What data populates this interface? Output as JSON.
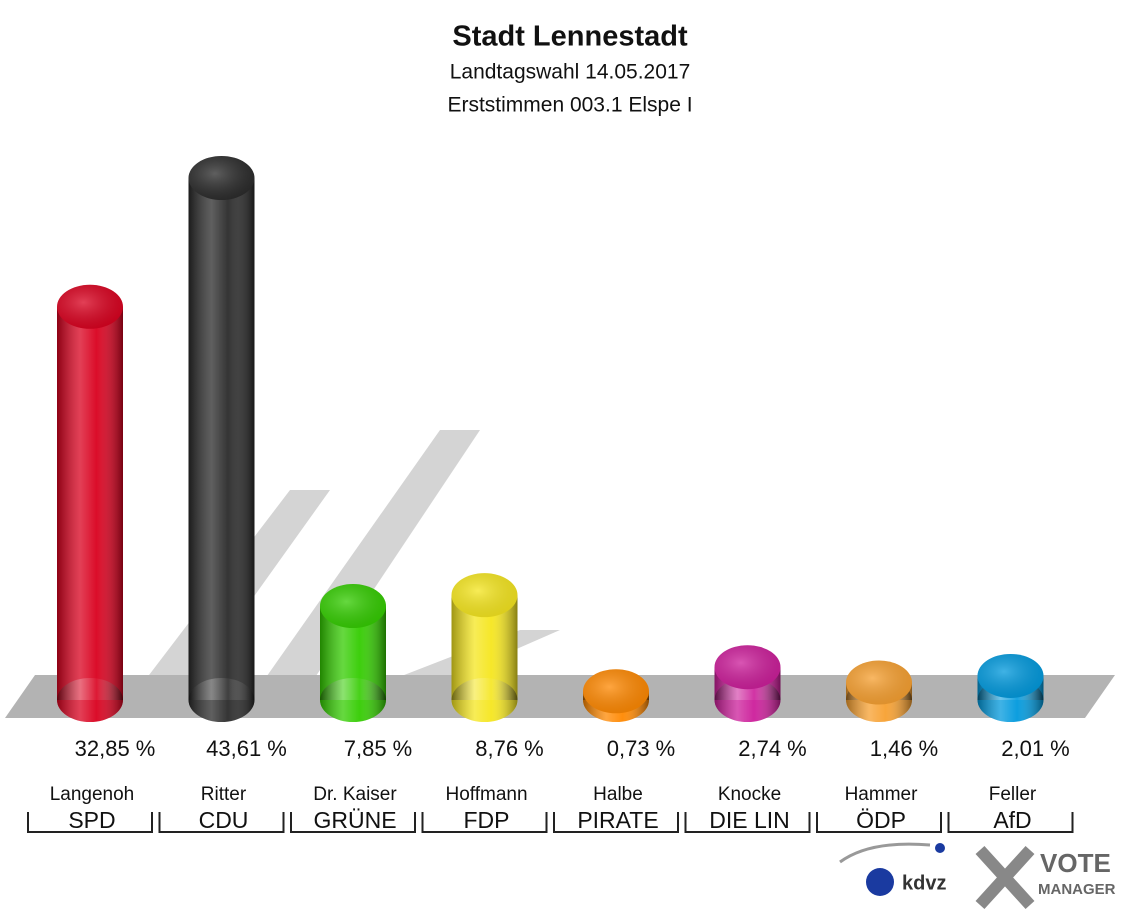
{
  "chart_data": {
    "type": "bar",
    "title": "Stadt Lennestadt",
    "subtitle": "Landtagswahl 14.05.2017",
    "subtitle2": "Erststimmen 003.1 Elspe I",
    "categories": [
      "Langenoh",
      "Ritter",
      "Dr. Kaiser",
      "Hoffmann",
      "Halbe",
      "Knocke",
      "Hammer",
      "Feller"
    ],
    "parties": [
      "SPD",
      "CDU",
      "GRÜNE",
      "FDP",
      "PIRATE",
      "DIE LIN",
      "ÖDP",
      "AfD"
    ],
    "values": [
      32.85,
      43.61,
      7.85,
      8.76,
      0.73,
      2.74,
      1.46,
      2.01
    ],
    "value_labels": [
      "32,85 %",
      "43,61 %",
      "7,85 %",
      "8,76 %",
      "0,73 %",
      "2,74 %",
      "1,46 %",
      "2,01 %"
    ],
    "colors": [
      "#d9001e",
      "#2a2a2a",
      "#33cc00",
      "#f5e61e",
      "#ff8800",
      "#cc1d9a",
      "#f7a030",
      "#0099dd"
    ],
    "logo": {
      "left": "kdvz",
      "right_top": "VOTE",
      "right_bottom": "MANAGER"
    }
  }
}
